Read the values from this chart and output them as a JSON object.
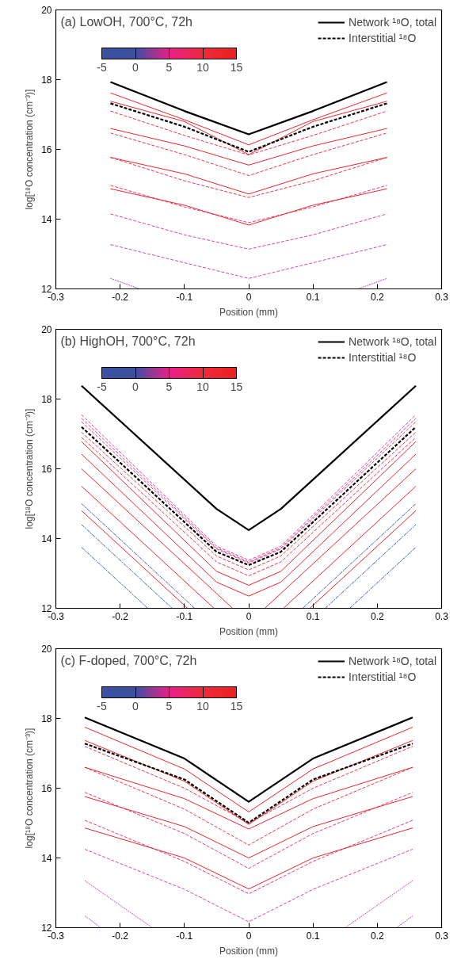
{
  "chart_data": [
    {
      "type": "line",
      "title": "(a) LowOH, 700°C, 72h",
      "xlabel": "Position (mm)",
      "ylabel": "log[¹⁸O concentration (cm⁻³)]",
      "xlim": [
        -0.3,
        0.3
      ],
      "ylim": [
        12,
        20
      ],
      "xticks": [
        -0.3,
        -0.2,
        -0.1,
        0,
        0.1,
        0.2,
        0.3
      ],
      "yticks": [
        12,
        14,
        16,
        18,
        20
      ],
      "legend": "top right",
      "clim": [
        -5,
        15
      ],
      "cticks": [
        -5,
        0,
        5,
        10,
        15
      ],
      "x": [
        -0.215,
        -0.1,
        0,
        0.1,
        0.215
      ],
      "series": [
        {
          "name": "Network ¹⁸O, total",
          "color": "#000000",
          "line_style": "solid",
          "values": [
            17.93,
            17.1,
            16.43,
            17.1,
            17.93
          ]
        },
        {
          "name": "Interstitial ¹⁸O",
          "color": "#000000",
          "line_style": "dashed",
          "values": [
            17.32,
            16.65,
            15.93,
            16.65,
            17.32
          ]
        },
        {
          "color": "#e8262b",
          "line_style": "solid",
          "values": [
            17.62,
            16.85,
            16.13,
            16.85,
            17.62
          ]
        },
        {
          "color": "#e8262b",
          "line_style": "solid",
          "values": [
            17.38,
            16.8,
            15.85,
            16.8,
            17.38
          ]
        },
        {
          "color": "#e8344a",
          "line_style": "dashed",
          "values": [
            17.1,
            16.4,
            15.84,
            16.4,
            17.1
          ]
        },
        {
          "color": "#e8262b",
          "line_style": "solid",
          "values": [
            16.6,
            16.1,
            15.55,
            16.1,
            16.6
          ]
        },
        {
          "color": "#e8344a",
          "line_style": "dashed",
          "values": [
            16.47,
            15.85,
            15.25,
            15.85,
            16.47
          ]
        },
        {
          "color": "#e8262b",
          "line_style": "solid",
          "values": [
            15.77,
            15.3,
            14.72,
            15.3,
            15.77
          ]
        },
        {
          "color": "#e8344a",
          "line_style": "dashed",
          "values": [
            15.77,
            15.1,
            14.62,
            15.1,
            15.77
          ]
        },
        {
          "color": "#e8262b",
          "line_style": "solid",
          "values": [
            14.87,
            14.4,
            13.83,
            14.4,
            14.87
          ]
        },
        {
          "color": "#e83a70",
          "line_style": "dashed",
          "values": [
            14.97,
            14.35,
            13.9,
            14.35,
            14.97
          ]
        },
        {
          "color": "#e040a0",
          "line_style": "dashed",
          "values": [
            14.15,
            13.55,
            13.14,
            13.55,
            14.15
          ]
        },
        {
          "color": "#d048b0",
          "line_style": "dashed",
          "values": [
            13.27,
            12.75,
            12.3,
            12.75,
            13.27
          ]
        },
        {
          "color": "#a050b0",
          "line_style": "dotted",
          "x": [
            -0.215,
            -0.17,
            0,
            0.17,
            0.215
          ],
          "values": [
            12.3,
            12.0,
            null,
            12.0,
            12.3
          ]
        }
      ]
    },
    {
      "type": "line",
      "title": "(b) HighOH, 700°C, 72h",
      "xlabel": "Position (mm)",
      "ylabel": "log[¹⁸O concentration (cm⁻³)]",
      "xlim": [
        -0.3,
        0.3
      ],
      "ylim": [
        12,
        20
      ],
      "xticks": [
        -0.3,
        -0.2,
        -0.1,
        0,
        0.1,
        0.2,
        0.3
      ],
      "yticks": [
        12,
        14,
        16,
        18,
        20
      ],
      "legend": "top right",
      "clim": [
        -5,
        15
      ],
      "cticks": [
        -5,
        0,
        5,
        10,
        15
      ],
      "x": [
        -0.26,
        -0.05,
        0,
        0.05,
        0.26
      ],
      "series": [
        {
          "name": "Network ¹⁸O, total",
          "color": "#000000",
          "line_style": "solid",
          "values": [
            18.38,
            14.85,
            14.24,
            14.85,
            18.38
          ]
        },
        {
          "name": "Interstitial ¹⁸O",
          "color": "#000000",
          "line_style": "dashed",
          "values": [
            17.2,
            13.62,
            13.24,
            13.62,
            17.2
          ]
        },
        {
          "color": "#e040a0",
          "line_style": "dashed",
          "values": [
            17.55,
            13.78,
            13.38,
            13.78,
            17.55
          ]
        },
        {
          "color": "#e0409a",
          "line_style": "dashed",
          "values": [
            17.45,
            13.73,
            13.33,
            13.73,
            17.45
          ]
        },
        {
          "color": "#e83a70",
          "line_style": "dashed",
          "values": [
            17.35,
            13.7,
            13.3,
            13.7,
            17.35
          ]
        },
        {
          "color": "#e8344a",
          "line_style": "dashed",
          "values": [
            17.05,
            13.5,
            13.1,
            13.5,
            17.05
          ]
        },
        {
          "color": "#e8344a",
          "line_style": "dashed",
          "values": [
            16.9,
            13.33,
            12.93,
            13.33,
            16.9
          ]
        },
        {
          "color": "#e8262b",
          "line_style": "solid",
          "values": [
            16.78,
            13.06,
            12.66,
            13.06,
            16.78
          ]
        },
        {
          "color": "#e8262b",
          "line_style": "solid",
          "values": [
            16.42,
            12.75,
            12.35,
            12.75,
            16.42
          ]
        },
        {
          "color": "#e8262b",
          "line_style": "solid",
          "x": [
            -0.26,
            -0.025,
            0,
            0.025,
            0.26
          ],
          "values": [
            16.0,
            12.0,
            null,
            12.0,
            16.0
          ]
        },
        {
          "color": "#e8262b",
          "line_style": "solid",
          "x": [
            -0.26,
            -0.054,
            0,
            0.054,
            0.26
          ],
          "values": [
            15.5,
            12.0,
            null,
            12.0,
            15.5
          ]
        },
        {
          "color": "#e8262b",
          "line_style": "solid",
          "x": [
            -0.26,
            -0.095,
            0,
            0.095,
            0.26
          ],
          "values": [
            14.8,
            12.0,
            null,
            12.0,
            14.8
          ]
        },
        {
          "color": "#4060b0",
          "line_style": "dashdot",
          "x": [
            -0.26,
            -0.084,
            0,
            0.084,
            0.26
          ],
          "values": [
            15.0,
            12.0,
            null,
            12.0,
            15.0
          ]
        },
        {
          "color": "#4060b0",
          "line_style": "dashdot",
          "x": [
            -0.26,
            -0.119,
            0,
            0.119,
            0.26
          ],
          "values": [
            14.4,
            12.0,
            null,
            12.0,
            14.4
          ]
        },
        {
          "color": "#4060b0",
          "line_style": "dashdot",
          "x": [
            -0.26,
            -0.157,
            0,
            0.157,
            0.26
          ],
          "values": [
            13.75,
            12.0,
            null,
            12.0,
            13.75
          ]
        }
      ]
    },
    {
      "type": "line",
      "title": "(c) F-doped, 700°C, 72h",
      "xlabel": "Position (mm)",
      "ylabel": "log[¹⁸O concentration (cm⁻³)]",
      "xlim": [
        -0.3,
        0.3
      ],
      "ylim": [
        12,
        20
      ],
      "xticks": [
        -0.3,
        -0.2,
        -0.1,
        0,
        0.1,
        0.2,
        0.3
      ],
      "yticks": [
        12,
        14,
        16,
        18,
        20
      ],
      "legend": "top right",
      "clim": [
        -5,
        15
      ],
      "cticks": [
        -5,
        0,
        5,
        10,
        15
      ],
      "x": [
        -0.255,
        -0.1,
        0,
        0.1,
        0.255
      ],
      "series": [
        {
          "name": "Network ¹⁸O, total",
          "color": "#000000",
          "line_style": "solid",
          "values": [
            18.03,
            16.85,
            15.61,
            16.85,
            18.03
          ]
        },
        {
          "name": "Interstitial ¹⁸O",
          "color": "#000000",
          "line_style": "dashed",
          "values": [
            17.28,
            16.25,
            15.01,
            16.25,
            17.28
          ]
        },
        {
          "color": "#e8262b",
          "line_style": "solid",
          "values": [
            17.75,
            16.55,
            15.32,
            16.55,
            17.75
          ]
        },
        {
          "color": "#e8262b",
          "line_style": "solid",
          "values": [
            17.37,
            16.2,
            14.96,
            16.2,
            17.37
          ]
        },
        {
          "color": "#e8344a",
          "line_style": "dashed",
          "values": [
            17.2,
            16.0,
            15.0,
            16.0,
            17.2
          ]
        },
        {
          "color": "#e8262b",
          "line_style": "solid",
          "values": [
            16.6,
            15.7,
            14.83,
            15.7,
            16.6
          ]
        },
        {
          "color": "#e8344a",
          "line_style": "dashed",
          "values": [
            16.6,
            15.4,
            14.37,
            15.4,
            16.6
          ]
        },
        {
          "color": "#e8262b",
          "line_style": "solid",
          "values": [
            15.76,
            14.9,
            14.0,
            14.9,
            15.76
          ]
        },
        {
          "color": "#e83a70",
          "line_style": "dashed",
          "values": [
            15.88,
            14.7,
            13.7,
            14.7,
            15.88
          ]
        },
        {
          "color": "#e8262b",
          "line_style": "solid",
          "values": [
            14.86,
            14.0,
            13.11,
            14.0,
            14.86
          ]
        },
        {
          "color": "#e83a70",
          "line_style": "dashed",
          "values": [
            15.08,
            13.9,
            12.97,
            13.9,
            15.08
          ]
        },
        {
          "color": "#e040a0",
          "line_style": "dashed",
          "values": [
            14.25,
            13.1,
            12.17,
            13.1,
            14.25
          ]
        },
        {
          "color": "#d048b0",
          "line_style": "dotted",
          "x": [
            -0.255,
            -0.15,
            0,
            0.15,
            0.255
          ],
          "values": [
            13.35,
            12.0,
            null,
            12.0,
            13.35
          ]
        },
        {
          "color": "#a050b0",
          "line_style": "dotted",
          "x": [
            -0.255,
            -0.23,
            0,
            0.23,
            0.255
          ],
          "values": [
            12.34,
            12.0,
            null,
            12.0,
            12.34
          ]
        }
      ]
    }
  ]
}
